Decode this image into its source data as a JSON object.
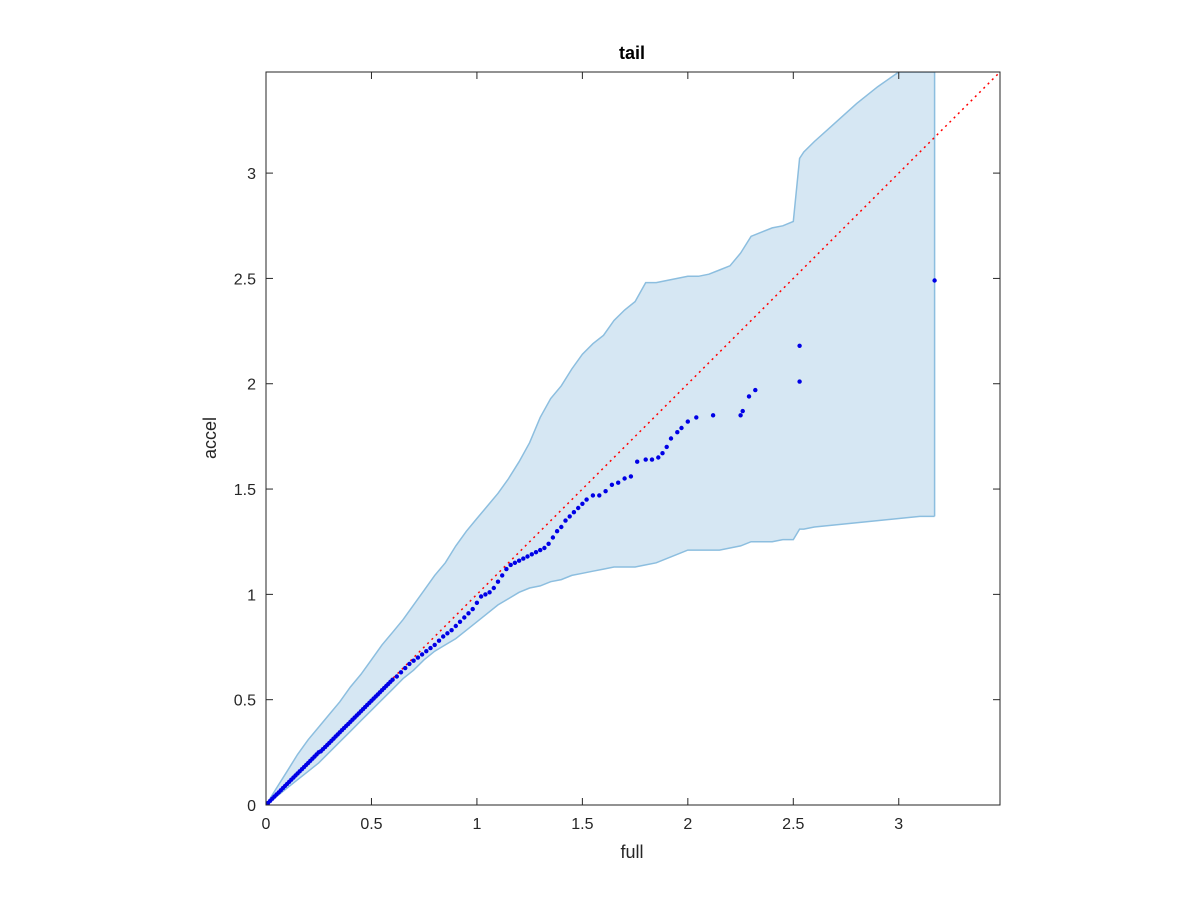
{
  "chart_data": {
    "type": "scatter",
    "title": "tail",
    "xlabel": "full",
    "ylabel": "accel",
    "xlim": [
      0,
      3.48
    ],
    "ylim": [
      0,
      3.48
    ],
    "xticks": [
      "0",
      "0.5",
      "1",
      "1.5",
      "2",
      "2.5",
      "3"
    ],
    "xtick_values": [
      0,
      0.5,
      1,
      1.5,
      2,
      2.5,
      3
    ],
    "yticks": [
      "0",
      "0.5",
      "1",
      "1.5",
      "2",
      "2.5",
      "3"
    ],
    "ytick_values": [
      0,
      0.5,
      1,
      1.5,
      2,
      2.5,
      3
    ],
    "grid": false,
    "colors": {
      "points": "#0000e6",
      "reference_line": "#ff0000",
      "band_fill": "#d6e7f3",
      "band_edge": "#8cbedf",
      "axes": "#262626"
    },
    "reference_line": {
      "style": "dotted",
      "x": [
        0,
        3.48
      ],
      "y": [
        0,
        3.48
      ]
    },
    "confidence_band": {
      "x": [
        0,
        0.05,
        0.1,
        0.15,
        0.2,
        0.25,
        0.3,
        0.35,
        0.4,
        0.45,
        0.5,
        0.55,
        0.6,
        0.65,
        0.7,
        0.75,
        0.8,
        0.85,
        0.9,
        0.95,
        1.0,
        1.05,
        1.1,
        1.15,
        1.2,
        1.25,
        1.3,
        1.35,
        1.4,
        1.45,
        1.5,
        1.55,
        1.6,
        1.65,
        1.7,
        1.75,
        1.8,
        1.85,
        1.9,
        1.95,
        2.0,
        2.05,
        2.1,
        2.15,
        2.2,
        2.25,
        2.3,
        2.35,
        2.4,
        2.45,
        2.5,
        2.53,
        2.55,
        2.6,
        2.7,
        2.8,
        2.9,
        3.0,
        3.1,
        3.17
      ],
      "upper": [
        0,
        0.08,
        0.16,
        0.24,
        0.31,
        0.37,
        0.43,
        0.49,
        0.56,
        0.62,
        0.69,
        0.76,
        0.82,
        0.88,
        0.95,
        1.02,
        1.09,
        1.15,
        1.23,
        1.3,
        1.36,
        1.42,
        1.48,
        1.55,
        1.63,
        1.72,
        1.84,
        1.93,
        1.99,
        2.07,
        2.14,
        2.19,
        2.23,
        2.3,
        2.35,
        2.39,
        2.48,
        2.48,
        2.49,
        2.5,
        2.51,
        2.51,
        2.52,
        2.54,
        2.56,
        2.62,
        2.7,
        2.72,
        2.74,
        2.75,
        2.77,
        3.07,
        3.1,
        3.15,
        3.24,
        3.33,
        3.41,
        3.48,
        3.48,
        3.48
      ],
      "lower": [
        0,
        0.04,
        0.08,
        0.12,
        0.16,
        0.2,
        0.25,
        0.3,
        0.35,
        0.4,
        0.45,
        0.5,
        0.55,
        0.6,
        0.64,
        0.69,
        0.73,
        0.76,
        0.79,
        0.83,
        0.87,
        0.91,
        0.95,
        0.98,
        1.01,
        1.03,
        1.04,
        1.06,
        1.07,
        1.09,
        1.1,
        1.11,
        1.12,
        1.13,
        1.13,
        1.13,
        1.14,
        1.15,
        1.17,
        1.19,
        1.21,
        1.21,
        1.21,
        1.21,
        1.22,
        1.23,
        1.25,
        1.25,
        1.25,
        1.26,
        1.26,
        1.31,
        1.31,
        1.32,
        1.33,
        1.34,
        1.35,
        1.36,
        1.37,
        1.37
      ]
    },
    "series": [
      {
        "x": [
          0.01,
          0.02,
          0.03,
          0.04,
          0.05,
          0.06,
          0.07,
          0.08,
          0.09,
          0.1,
          0.11,
          0.12,
          0.13,
          0.14,
          0.15,
          0.16,
          0.17,
          0.18,
          0.19,
          0.2,
          0.21,
          0.22,
          0.23,
          0.24,
          0.25,
          0.26,
          0.27,
          0.28,
          0.29,
          0.3,
          0.31,
          0.32,
          0.33,
          0.34,
          0.35,
          0.36,
          0.37,
          0.38,
          0.39,
          0.4,
          0.41,
          0.42,
          0.43,
          0.44,
          0.45,
          0.46,
          0.47,
          0.48,
          0.49,
          0.5,
          0.51,
          0.52,
          0.53,
          0.54,
          0.55,
          0.56,
          0.57,
          0.58,
          0.59,
          0.6,
          0.62,
          0.64,
          0.66,
          0.68,
          0.7,
          0.72,
          0.74,
          0.76,
          0.78,
          0.8,
          0.82,
          0.84,
          0.86,
          0.88,
          0.9,
          0.92,
          0.94,
          0.96,
          0.98,
          1.0,
          1.02,
          1.04,
          1.06,
          1.08,
          1.1,
          1.12,
          1.14,
          1.16,
          1.18,
          1.2,
          1.22,
          1.24,
          1.26,
          1.28,
          1.3,
          1.32,
          1.34,
          1.36,
          1.38,
          1.4,
          1.42,
          1.44,
          1.46,
          1.48,
          1.5,
          1.52,
          1.55,
          1.58,
          1.61,
          1.64,
          1.67,
          1.7,
          1.73,
          1.76,
          1.8,
          1.83,
          1.86,
          1.88,
          1.9,
          1.92,
          1.95,
          1.97,
          2.0,
          2.04,
          2.12,
          2.25,
          2.26,
          2.29,
          2.32,
          2.53,
          2.53,
          3.17
        ],
        "y": [
          0.01,
          0.02,
          0.03,
          0.04,
          0.05,
          0.06,
          0.07,
          0.08,
          0.09,
          0.1,
          0.11,
          0.12,
          0.13,
          0.14,
          0.15,
          0.16,
          0.17,
          0.18,
          0.19,
          0.2,
          0.21,
          0.22,
          0.23,
          0.24,
          0.25,
          0.255,
          0.265,
          0.275,
          0.285,
          0.295,
          0.305,
          0.315,
          0.325,
          0.335,
          0.345,
          0.355,
          0.365,
          0.375,
          0.385,
          0.395,
          0.405,
          0.415,
          0.425,
          0.435,
          0.445,
          0.455,
          0.465,
          0.475,
          0.485,
          0.495,
          0.505,
          0.515,
          0.525,
          0.535,
          0.545,
          0.555,
          0.565,
          0.575,
          0.585,
          0.595,
          0.61,
          0.63,
          0.65,
          0.67,
          0.685,
          0.7,
          0.715,
          0.73,
          0.745,
          0.76,
          0.78,
          0.8,
          0.815,
          0.83,
          0.85,
          0.87,
          0.89,
          0.91,
          0.93,
          0.96,
          0.99,
          1.0,
          1.01,
          1.03,
          1.06,
          1.09,
          1.12,
          1.14,
          1.15,
          1.16,
          1.17,
          1.18,
          1.19,
          1.2,
          1.21,
          1.22,
          1.24,
          1.27,
          1.3,
          1.32,
          1.35,
          1.37,
          1.39,
          1.41,
          1.43,
          1.45,
          1.47,
          1.47,
          1.49,
          1.52,
          1.53,
          1.55,
          1.56,
          1.63,
          1.64,
          1.64,
          1.65,
          1.67,
          1.7,
          1.74,
          1.77,
          1.79,
          1.82,
          1.84,
          1.85,
          1.85,
          1.87,
          1.94,
          1.97,
          2.01,
          2.18,
          2.49
        ]
      }
    ]
  }
}
